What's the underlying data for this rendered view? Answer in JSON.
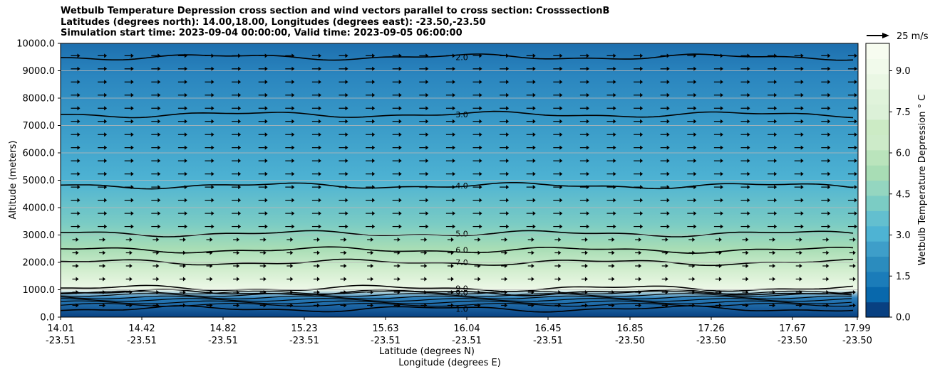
{
  "chart_data": {
    "type": "contourf",
    "title_lines": [
      "Wetbulb Temperature Depression cross section and wind vectors parallel to cross section: CrosssectionB",
      "Latitudes (degrees north): 14.00,18.00, Longitudes (degrees east): -23.50,-23.50",
      "Simulation start time: 2023-09-04 00:00:00, Valid time: 2023-09-05 06:00:00"
    ],
    "ylabel": "Altitude (meters)",
    "xlabel_lat": "Latitude (degrees N)",
    "xlabel_lon": "Longitude (degrees E)",
    "ylim": [
      0,
      10000
    ],
    "y_ticks": [
      "0.0",
      "1000.0",
      "2000.0",
      "3000.0",
      "4000.0",
      "5000.0",
      "6000.0",
      "7000.0",
      "8000.0",
      "9000.0",
      "10000.0"
    ],
    "x_ticks": [
      {
        "lat": "14.01",
        "lon": "-23.51"
      },
      {
        "lat": "14.42",
        "lon": "-23.51"
      },
      {
        "lat": "14.82",
        "lon": "-23.51"
      },
      {
        "lat": "15.23",
        "lon": "-23.51"
      },
      {
        "lat": "15.63",
        "lon": "-23.51"
      },
      {
        "lat": "16.04",
        "lon": "-23.51"
      },
      {
        "lat": "16.45",
        "lon": "-23.51"
      },
      {
        "lat": "16.85",
        "lon": "-23.50"
      },
      {
        "lat": "17.26",
        "lon": "-23.50"
      },
      {
        "lat": "17.67",
        "lon": "-23.50"
      },
      {
        "lat": "17.99",
        "lon": "-23.50"
      }
    ],
    "contour_lines": [
      {
        "label": "1.0",
        "alt": 300
      },
      {
        "label": "9.0",
        "alt": 900
      },
      {
        "label": "9.0",
        "alt": 1050
      },
      {
        "label": "7.0",
        "alt": 2000
      },
      {
        "label": "6.0",
        "alt": 2450
      },
      {
        "label": "5.0",
        "alt": 3050
      },
      {
        "label": "4.0",
        "alt": 4800
      },
      {
        "label": "3.0",
        "alt": 7400
      },
      {
        "label": "2.0",
        "alt": 9500
      }
    ],
    "colorbar": {
      "label": "Wetbulb Temperature Depression $^\\circ$C",
      "label_text": "Wetbulb Temperature Depression ° C",
      "range": [
        0,
        10
      ],
      "ticks": [
        "0.0",
        "1.5",
        "3.0",
        "4.5",
        "6.0",
        "7.5",
        "9.0"
      ],
      "colors": [
        "#084081",
        "#0868ac",
        "#1b7cb9",
        "#2b8cbe",
        "#3e9ec9",
        "#4eb3d3",
        "#63bfcf",
        "#7bccc4",
        "#94d6c0",
        "#a8ddb5",
        "#bae4bc",
        "#cdebc9",
        "#ccebc5",
        "#dcf1d8",
        "#e0f3db",
        "#eaf7e4",
        "#f1faeb",
        "#f7fcf0"
      ]
    },
    "wind_key": "25 m/s",
    "grid": true
  }
}
